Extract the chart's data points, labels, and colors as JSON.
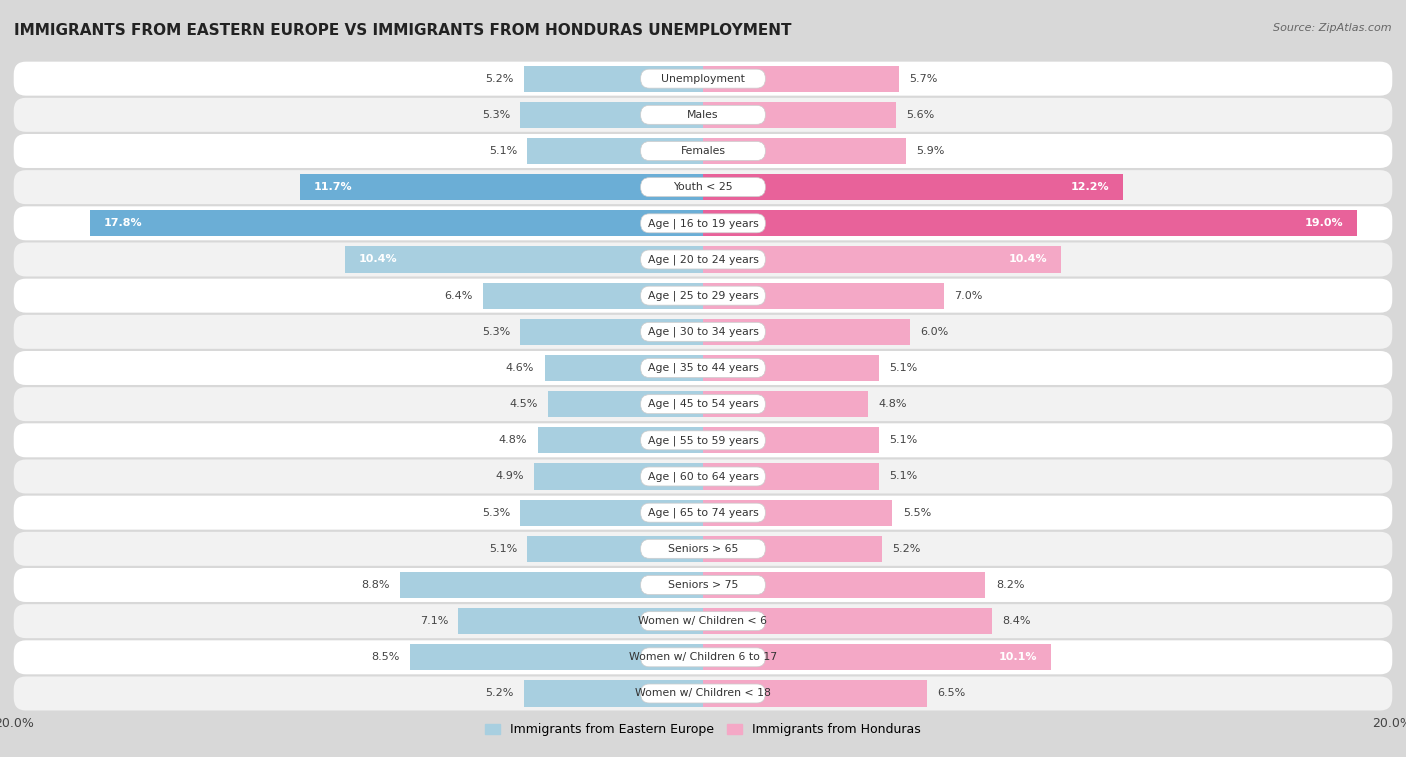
{
  "title": "IMMIGRANTS FROM EASTERN EUROPE VS IMMIGRANTS FROM HONDURAS UNEMPLOYMENT",
  "source": "Source: ZipAtlas.com",
  "categories": [
    "Unemployment",
    "Males",
    "Females",
    "Youth < 25",
    "Age | 16 to 19 years",
    "Age | 20 to 24 years",
    "Age | 25 to 29 years",
    "Age | 30 to 34 years",
    "Age | 35 to 44 years",
    "Age | 45 to 54 years",
    "Age | 55 to 59 years",
    "Age | 60 to 64 years",
    "Age | 65 to 74 years",
    "Seniors > 65",
    "Seniors > 75",
    "Women w/ Children < 6",
    "Women w/ Children 6 to 17",
    "Women w/ Children < 18"
  ],
  "eastern_europe": [
    5.2,
    5.3,
    5.1,
    11.7,
    17.8,
    10.4,
    6.4,
    5.3,
    4.6,
    4.5,
    4.8,
    4.9,
    5.3,
    5.1,
    8.8,
    7.1,
    8.5,
    5.2
  ],
  "honduras": [
    5.7,
    5.6,
    5.9,
    12.2,
    19.0,
    10.4,
    7.0,
    6.0,
    5.1,
    4.8,
    5.1,
    5.1,
    5.5,
    5.2,
    8.2,
    8.4,
    10.1,
    6.5
  ],
  "color_eastern": "#a8cfe0",
  "color_honduras": "#f4a8c6",
  "color_eastern_highlight": "#6baed6",
  "color_honduras_highlight": "#e8629a",
  "xlim": 20.0,
  "bg_outer": "#d8d8d8",
  "bg_row_white": "#ffffff",
  "bg_row_light": "#f0f0f0"
}
